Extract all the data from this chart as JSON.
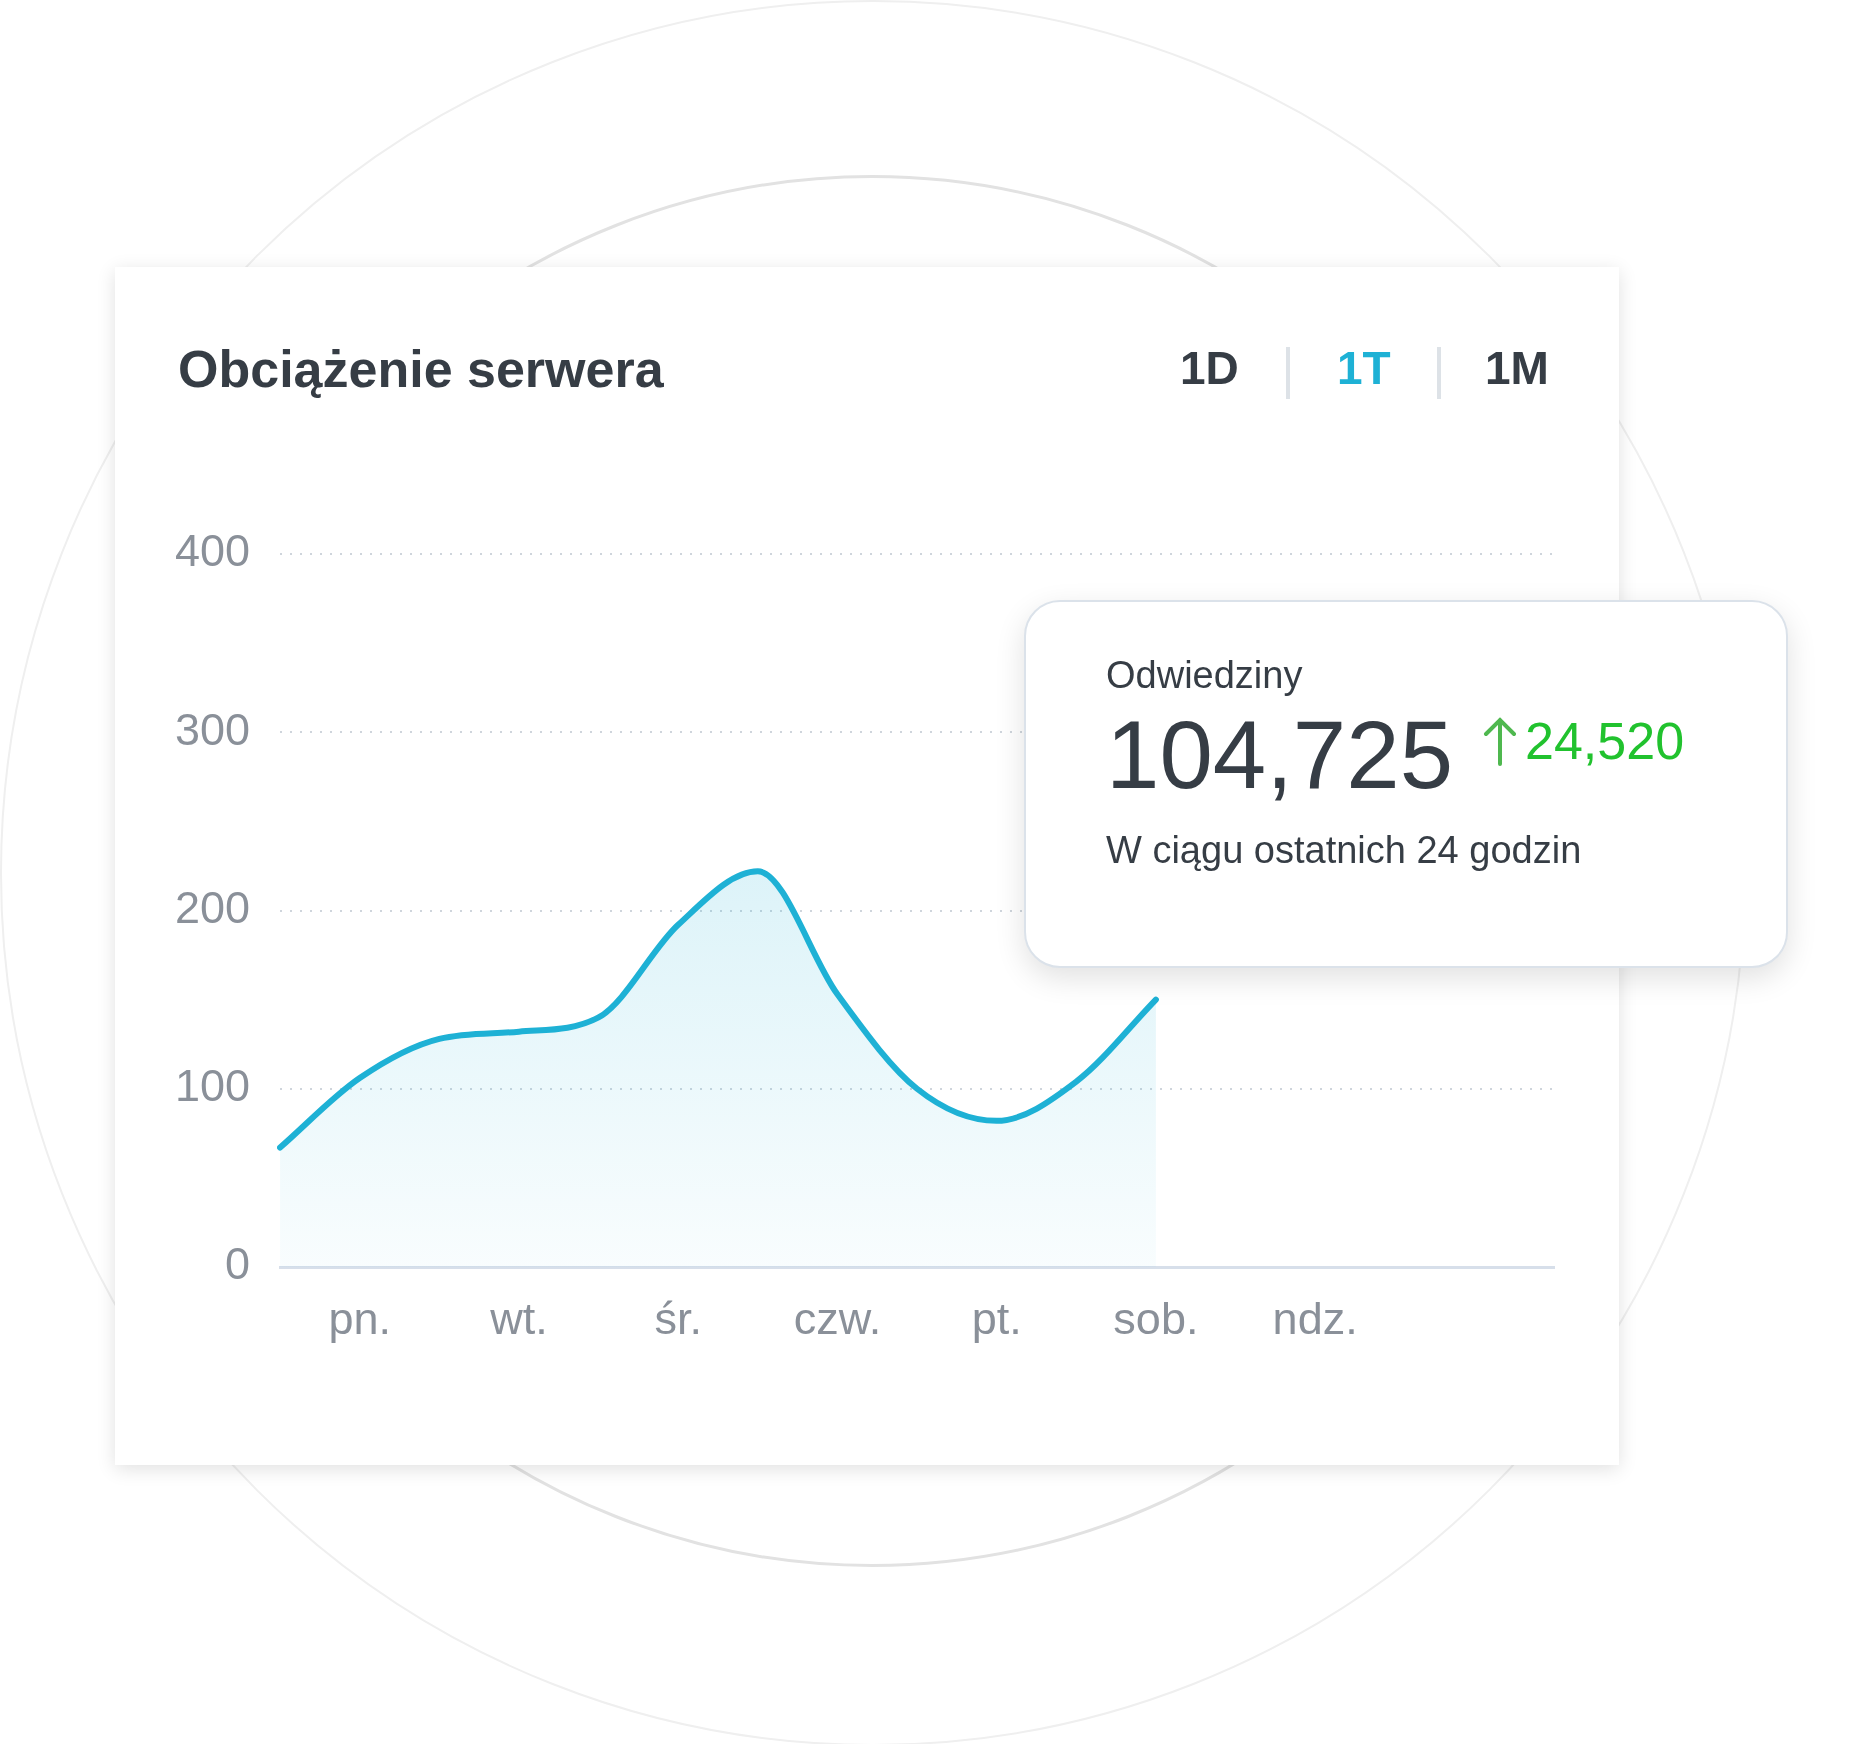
{
  "chart_data": {
    "type": "area",
    "title": "Obciążenie serwera",
    "categories": [
      null,
      "pn.",
      null,
      "wt.",
      null,
      "śr.",
      null,
      "czw.",
      null,
      "pt.",
      null,
      "sob.",
      null,
      "ndz.",
      null,
      null,
      null
    ],
    "series": [
      {
        "color": "#1eb1d5",
        "values": [
          67,
          106,
          128,
          132,
          140,
          192,
          222,
          153,
          100,
          82,
          104,
          150,
          null,
          null,
          null,
          null,
          null
        ]
      }
    ],
    "ylim": [
      0,
      400
    ],
    "yticks": [
      0,
      100,
      200,
      300,
      400
    ],
    "grid": "y",
    "marker": "none",
    "annotations": [
      "1D",
      "1T",
      "1M",
      "Odwiedziny",
      "104,725",
      "24,520",
      "W ciągu ostatnich 24 godzin"
    ]
  }
}
